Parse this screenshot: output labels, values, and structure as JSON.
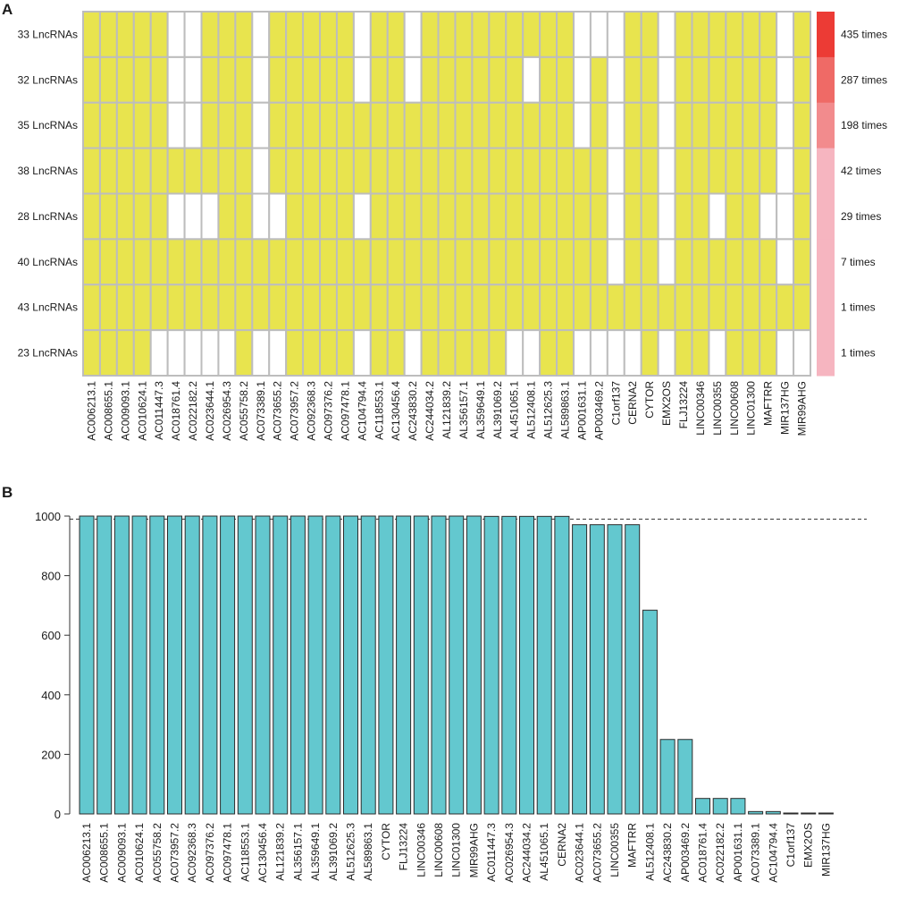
{
  "panel_labels": {
    "a": "A",
    "b": "B"
  },
  "colors": {
    "present": "#e8e44e",
    "absent": "#ffffff",
    "grid": "#bdbdbd",
    "bar_fill": "#63c8cf",
    "bar_stroke": "#2b2b2b",
    "legend": [
      "#ec3b35",
      "#ef6a66",
      "#f28b8d",
      "#f6b5c0",
      "#f6b5c0",
      "#f6b5c0",
      "#f6b5c0",
      "#f6b5c0"
    ]
  },
  "chart_data": [
    {
      "type": "heatmap",
      "panel": "A",
      "rows": [
        "33 LncRNAs",
        "32 LncRNAs",
        "35 LncRNAs",
        "38 LncRNAs",
        "28 LncRNAs",
        "40 LncRNAs",
        "43 LncRNAs",
        "23 LncRNAs"
      ],
      "columns": [
        "AC006213.1",
        "AC008655.1",
        "AC009093.1",
        "AC010624.1",
        "AC011447.3",
        "AC018761.4",
        "AC022182.2",
        "AC023644.1",
        "AC026954.3",
        "AC055758.2",
        "AC073389.1",
        "AC073655.2",
        "AC073957.2",
        "AC092368.3",
        "AC097376.2",
        "AC097478.1",
        "AC104794.4",
        "AC118553.1",
        "AC130456.4",
        "AC243830.2",
        "AC244034.2",
        "AL121839.2",
        "AL356157.1",
        "AL359649.1",
        "AL391069.2",
        "AL451065.1",
        "AL512408.1",
        "AL512625.3",
        "AL589863.1",
        "AP001631.1",
        "AP003469.2",
        "C1orf137",
        "CERNA2",
        "CYTOR",
        "EMX2OS",
        "FLJ13224",
        "LINC00346",
        "LINC00355",
        "LINC00608",
        "LINC01300",
        "MAFTRR",
        "MIR137HG",
        "MIR99AHG"
      ],
      "matrix": [
        [
          1,
          1,
          1,
          1,
          1,
          0,
          0,
          1,
          1,
          1,
          0,
          1,
          1,
          1,
          1,
          1,
          0,
          1,
          1,
          0,
          1,
          1,
          1,
          1,
          1,
          1,
          1,
          1,
          1,
          0,
          0,
          0,
          1,
          1,
          0,
          1,
          1,
          1,
          1,
          1,
          1,
          0,
          1
        ],
        [
          1,
          1,
          1,
          1,
          1,
          0,
          0,
          1,
          1,
          1,
          0,
          1,
          1,
          1,
          1,
          1,
          0,
          1,
          1,
          0,
          1,
          1,
          1,
          1,
          1,
          1,
          0,
          1,
          1,
          0,
          1,
          0,
          1,
          1,
          0,
          1,
          1,
          1,
          1,
          1,
          1,
          0,
          1
        ],
        [
          1,
          1,
          1,
          1,
          1,
          0,
          0,
          1,
          1,
          1,
          0,
          1,
          1,
          1,
          1,
          1,
          1,
          1,
          1,
          1,
          1,
          1,
          1,
          1,
          1,
          1,
          1,
          1,
          1,
          0,
          1,
          0,
          1,
          1,
          0,
          1,
          1,
          1,
          1,
          1,
          1,
          0,
          1
        ],
        [
          1,
          1,
          1,
          1,
          1,
          1,
          1,
          1,
          1,
          1,
          0,
          1,
          1,
          1,
          1,
          1,
          1,
          1,
          1,
          1,
          1,
          1,
          1,
          1,
          1,
          1,
          1,
          1,
          1,
          1,
          1,
          0,
          1,
          1,
          0,
          1,
          1,
          1,
          1,
          1,
          1,
          0,
          1
        ],
        [
          1,
          1,
          1,
          1,
          1,
          0,
          0,
          0,
          1,
          1,
          0,
          0,
          1,
          1,
          1,
          1,
          0,
          1,
          1,
          1,
          1,
          1,
          1,
          1,
          1,
          1,
          1,
          1,
          1,
          1,
          1,
          0,
          1,
          1,
          0,
          1,
          1,
          0,
          1,
          1,
          0,
          0,
          1
        ],
        [
          1,
          1,
          1,
          1,
          1,
          1,
          1,
          1,
          1,
          1,
          1,
          1,
          1,
          1,
          1,
          1,
          1,
          1,
          1,
          1,
          1,
          1,
          1,
          1,
          1,
          1,
          1,
          1,
          1,
          1,
          1,
          0,
          1,
          1,
          0,
          1,
          1,
          1,
          1,
          1,
          1,
          0,
          1
        ],
        [
          1,
          1,
          1,
          1,
          1,
          1,
          1,
          1,
          1,
          1,
          1,
          1,
          1,
          1,
          1,
          1,
          1,
          1,
          1,
          1,
          1,
          1,
          1,
          1,
          1,
          1,
          1,
          1,
          1,
          1,
          1,
          1,
          1,
          1,
          1,
          1,
          1,
          1,
          1,
          1,
          1,
          1,
          1
        ],
        [
          1,
          1,
          1,
          1,
          0,
          0,
          0,
          0,
          0,
          1,
          0,
          0,
          1,
          1,
          1,
          1,
          0,
          1,
          1,
          0,
          1,
          1,
          1,
          1,
          1,
          0,
          0,
          1,
          1,
          0,
          0,
          0,
          0,
          1,
          0,
          1,
          1,
          0,
          1,
          1,
          1,
          0,
          0
        ]
      ],
      "legend": [
        "435 times",
        "287 times",
        "198 times",
        "42 times",
        "29 times",
        "7 times",
        "1 times",
        "1 times"
      ],
      "legend_values": [
        435,
        287,
        198,
        42,
        29,
        7,
        1,
        1
      ]
    },
    {
      "type": "bar",
      "panel": "B",
      "categories": [
        "AC006213.1",
        "AC008655.1",
        "AC009093.1",
        "AC010624.1",
        "AC055758.2",
        "AC073957.2",
        "AC092368.3",
        "AC097376.2",
        "AC097478.1",
        "AC118553.1",
        "AC130456.4",
        "AL121839.2",
        "AL356157.1",
        "AL359649.1",
        "AL391069.2",
        "AL512625.3",
        "AL589863.1",
        "CYTOR",
        "FLJ13224",
        "LINC00346",
        "LINC00608",
        "LINC01300",
        "MIR99AHG",
        "AC011447.3",
        "AC026954.3",
        "AC244034.2",
        "AL451065.1",
        "CERNA2",
        "AC023644.1",
        "AC073655.2",
        "LINC00355",
        "MAFTRR",
        "AL512408.1",
        "AC243830.2",
        "AP003469.2",
        "AC018761.4",
        "AC022182.2",
        "AP001631.1",
        "AC073389.1",
        "AC104794.4",
        "C1orf137",
        "EMX2OS",
        "MIR137HG"
      ],
      "values": [
        1000,
        1000,
        1000,
        1000,
        1000,
        1000,
        1000,
        1000,
        1000,
        1000,
        1000,
        1000,
        1000,
        1000,
        1000,
        1000,
        1000,
        1000,
        1000,
        1000,
        1000,
        1000,
        1000,
        999,
        999,
        999,
        999,
        999,
        971,
        971,
        971,
        971,
        684,
        250,
        250,
        52,
        52,
        52,
        8,
        8,
        3,
        3,
        3
      ],
      "yticks": [
        "0",
        "200",
        "400",
        "600",
        "800",
        "1000"
      ],
      "ylim": [
        0,
        1000
      ],
      "reference_line": 990
    }
  ]
}
